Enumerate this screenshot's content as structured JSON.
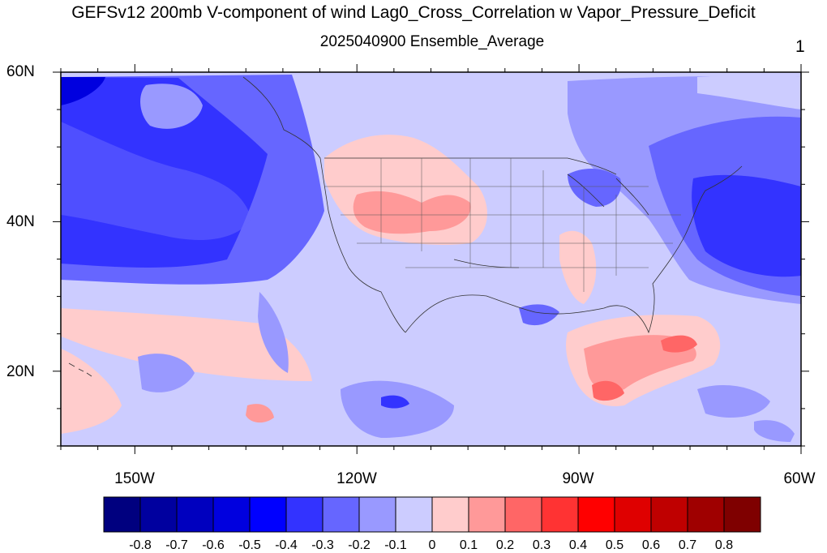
{
  "title": "GEFSv12 200mb V-component of wind Lag0_Cross_Correlation w Vapor_Pressure_Deficit",
  "subtitle": "2025040900 Ensemble_Average",
  "panel_number": "1",
  "lat_labels": [
    {
      "text": "60N",
      "lat": 60
    },
    {
      "text": "40N",
      "lat": 40
    },
    {
      "text": "20N",
      "lat": 20
    }
  ],
  "lon_labels": [
    {
      "text": "150W",
      "lon": -150
    },
    {
      "text": "120W",
      "lon": -120
    },
    {
      "text": "90W",
      "lon": -90
    },
    {
      "text": "60W",
      "lon": -60
    }
  ],
  "map_extent": {
    "lon_min": -160,
    "lon_max": -60,
    "lat_min": 10,
    "lat_max": 60
  },
  "colorbar": {
    "colors": [
      "#00007f",
      "#00009f",
      "#0000bf",
      "#0000df",
      "#0000ff",
      "#3333ff",
      "#6666ff",
      "#9999ff",
      "#ccccff",
      "#ffcccc",
      "#ff9999",
      "#ff6666",
      "#ff3333",
      "#ff0000",
      "#df0000",
      "#bf0000",
      "#9f0000",
      "#7f0000"
    ],
    "labels": [
      "-0.8",
      "-0.7",
      "-0.6",
      "-0.5",
      "-0.4",
      "-0.3",
      "-0.2",
      "-0.1",
      "0",
      "0.1",
      "0.2",
      "0.3",
      "0.4",
      "0.5",
      "0.6",
      "0.7",
      "0.8"
    ]
  }
}
